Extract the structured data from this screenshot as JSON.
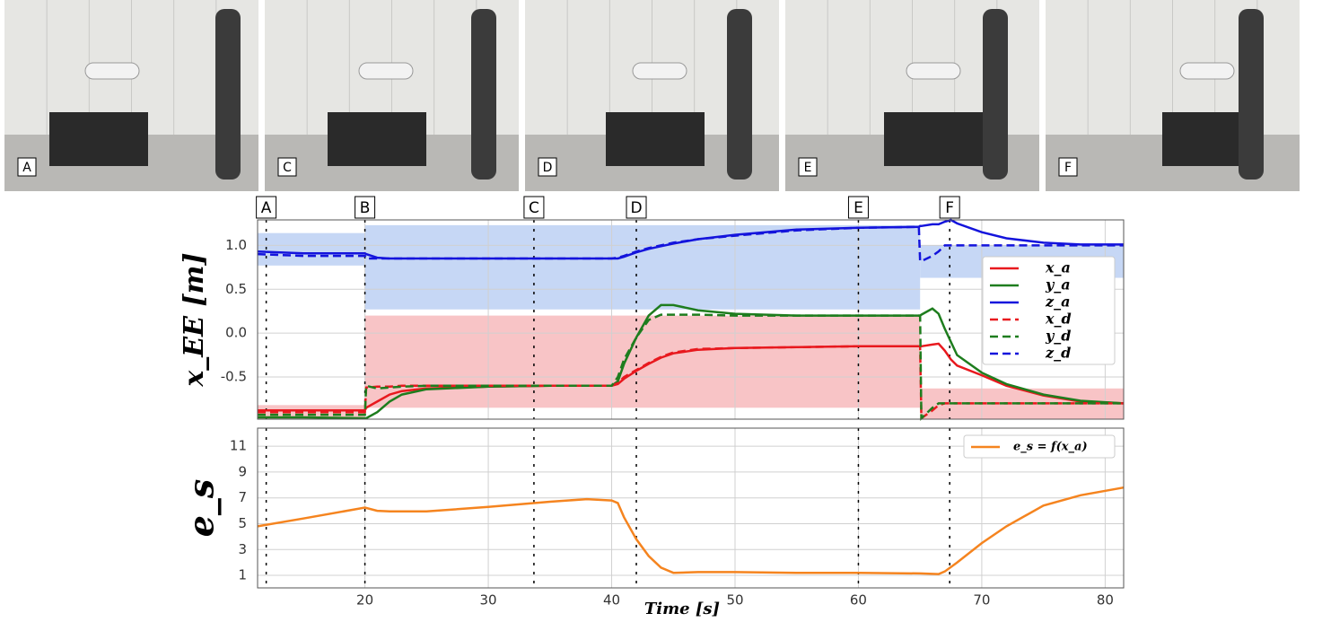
{
  "photos": [
    {
      "label": "A"
    },
    {
      "label": "C"
    },
    {
      "label": "D"
    },
    {
      "label": "E"
    },
    {
      "label": "F"
    }
  ],
  "chart_data": [
    {
      "type": "line",
      "ylabel": "x_EE [m]",
      "xlim": [
        11.3,
        81.5
      ],
      "ylim": [
        -0.98,
        1.29
      ],
      "xticks": [
        20,
        30,
        40,
        50,
        60,
        70,
        80
      ],
      "show_xtick_labels": false,
      "yticks": [
        -0.5,
        {
          "value": 0,
          "label": "0.0"
        },
        {
          "value": 0.5,
          "label": "0.5"
        },
        {
          "value": 1,
          "label": "1.0"
        }
      ],
      "grid": true,
      "legend": "center right",
      "events": [
        {
          "label": "A",
          "x": 12
        },
        {
          "label": "B",
          "x": 20
        },
        {
          "label": "C",
          "x": 33.7
        },
        {
          "label": "D",
          "x": 42
        },
        {
          "label": "E",
          "x": 60
        },
        {
          "label": "F",
          "x": 67.4
        }
      ],
      "bands": [
        {
          "color": "#c6d7f5",
          "x": [
            11.3,
            20
          ],
          "y": [
            0.77,
            1.14
          ]
        },
        {
          "color": "#c6d7f5",
          "x": [
            20,
            65
          ],
          "y": [
            0.27,
            1.23
          ]
        },
        {
          "color": "#c6d7f5",
          "x": [
            65,
            81.5
          ],
          "y": [
            0.63,
            1.0
          ]
        },
        {
          "color": "#f8c4c6",
          "x": [
            11.3,
            20
          ],
          "y": [
            -0.98,
            -0.82
          ]
        },
        {
          "color": "#f8c4c6",
          "x": [
            20,
            65
          ],
          "y": [
            -0.85,
            0.2
          ]
        },
        {
          "color": "#f8c4c6",
          "x": [
            65,
            81.5
          ],
          "y": [
            -0.98,
            -0.63
          ]
        }
      ],
      "x": [
        11.3,
        15,
        20,
        20.1,
        21,
        22,
        23,
        25,
        30,
        35,
        40,
        40.5,
        41,
        42,
        43,
        44,
        45,
        47,
        50,
        55,
        60,
        64.9,
        65,
        65.1,
        66,
        66.5,
        67,
        67.5,
        68,
        70,
        72,
        75,
        78,
        81.5
      ],
      "series": [
        {
          "name": "x_a",
          "color": "#e8191e",
          "linestyle": "solid",
          "values": [
            -0.88,
            -0.88,
            -0.88,
            -0.85,
            -0.78,
            -0.7,
            -0.66,
            -0.63,
            -0.61,
            -0.6,
            -0.6,
            -0.58,
            -0.52,
            -0.43,
            -0.35,
            -0.28,
            -0.23,
            -0.19,
            -0.17,
            -0.16,
            -0.15,
            -0.15,
            -0.15,
            -0.15,
            -0.13,
            -0.12,
            -0.2,
            -0.3,
            -0.37,
            -0.48,
            -0.6,
            -0.71,
            -0.78,
            -0.8
          ]
        },
        {
          "name": "y_a",
          "color": "#1e7d1e",
          "linestyle": "solid",
          "values": [
            -0.96,
            -0.96,
            -0.97,
            -0.97,
            -0.9,
            -0.78,
            -0.7,
            -0.64,
            -0.61,
            -0.6,
            -0.6,
            -0.55,
            -0.35,
            -0.05,
            0.2,
            0.32,
            0.32,
            0.26,
            0.22,
            0.2,
            0.2,
            0.2,
            0.2,
            0.21,
            0.28,
            0.22,
            0.05,
            -0.1,
            -0.25,
            -0.45,
            -0.58,
            -0.7,
            -0.77,
            -0.8
          ]
        },
        {
          "name": "z_a",
          "color": "#1414dc",
          "linestyle": "solid",
          "values": [
            0.93,
            0.91,
            0.91,
            0.9,
            0.86,
            0.85,
            0.85,
            0.85,
            0.85,
            0.85,
            0.85,
            0.85,
            0.87,
            0.92,
            0.96,
            0.99,
            1.02,
            1.07,
            1.12,
            1.18,
            1.2,
            1.21,
            1.22,
            1.22,
            1.24,
            1.24,
            1.27,
            1.29,
            1.25,
            1.15,
            1.08,
            1.03,
            1.01,
            1.01
          ]
        },
        {
          "name": "x_d",
          "color": "#e8191e",
          "linestyle": "dashed",
          "values": [
            -0.9,
            -0.9,
            -0.9,
            -0.62,
            -0.61,
            -0.61,
            -0.6,
            -0.6,
            -0.6,
            -0.6,
            -0.6,
            -0.57,
            -0.5,
            -0.42,
            -0.34,
            -0.27,
            -0.22,
            -0.18,
            -0.17,
            -0.16,
            -0.15,
            -0.15,
            -0.15,
            -0.97,
            -0.88,
            -0.82,
            -0.8,
            -0.8,
            -0.8,
            -0.8,
            -0.8,
            -0.8,
            -0.8,
            -0.8
          ]
        },
        {
          "name": "y_d",
          "color": "#1e7d1e",
          "linestyle": "dashed",
          "values": [
            -0.93,
            -0.93,
            -0.93,
            -0.6,
            -0.63,
            -0.62,
            -0.61,
            -0.6,
            -0.6,
            -0.6,
            -0.6,
            -0.5,
            -0.3,
            -0.05,
            0.15,
            0.21,
            0.21,
            0.21,
            0.2,
            0.2,
            0.2,
            0.2,
            0.2,
            -0.97,
            -0.85,
            -0.8,
            -0.8,
            -0.8,
            -0.8,
            -0.8,
            -0.8,
            -0.8,
            -0.8,
            -0.8
          ]
        },
        {
          "name": "z_d",
          "color": "#1414dc",
          "linestyle": "dashed",
          "values": [
            0.9,
            0.88,
            0.88,
            0.85,
            0.85,
            0.85,
            0.85,
            0.85,
            0.85,
            0.85,
            0.85,
            0.86,
            0.88,
            0.93,
            0.97,
            1.0,
            1.03,
            1.07,
            1.11,
            1.17,
            1.2,
            1.21,
            0.82,
            0.82,
            0.88,
            0.93,
            1.0,
            1.0,
            1.0,
            1.0,
            1.0,
            1.0,
            1.0,
            1.0
          ]
        }
      ]
    },
    {
      "type": "line",
      "ylabel": "e_s",
      "xlabel": "Time [s]",
      "xlim": [
        11.3,
        81.5
      ],
      "ylim": [
        0.03,
        12.4
      ],
      "xticks": [
        20,
        30,
        40,
        50,
        60,
        70,
        80
      ],
      "show_xtick_labels": true,
      "yticks": [
        1,
        3,
        5,
        7,
        9,
        11
      ],
      "grid": true,
      "legend": "upper right",
      "x": [
        11.3,
        15,
        20,
        21,
        22,
        25,
        30,
        35,
        38,
        40,
        40.5,
        41,
        42,
        43,
        44,
        45,
        47,
        50,
        55,
        60,
        65,
        66.5,
        67,
        68,
        70,
        72,
        75,
        78,
        81.5
      ],
      "series": [
        {
          "name": "e_s = f(x_a)",
          "color": "#f5841f",
          "linestyle": "solid",
          "values": [
            4.8,
            5.4,
            6.25,
            6.0,
            5.95,
            5.95,
            6.3,
            6.7,
            6.9,
            6.8,
            6.6,
            5.5,
            3.8,
            2.5,
            1.6,
            1.2,
            1.25,
            1.25,
            1.2,
            1.2,
            1.15,
            1.1,
            1.3,
            2.0,
            3.5,
            4.8,
            6.4,
            7.2,
            7.8
          ]
        }
      ]
    }
  ]
}
